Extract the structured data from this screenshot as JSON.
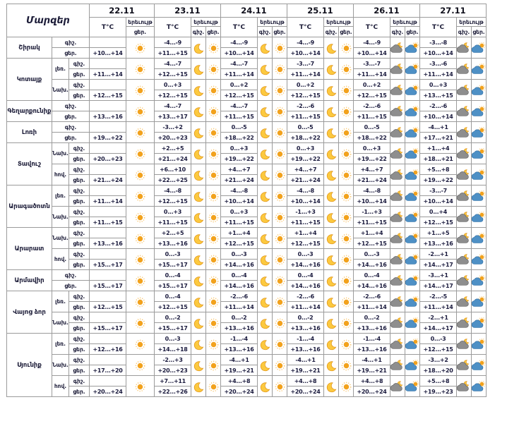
{
  "table": {
    "corner_label": "Մարզեր",
    "temp_header": "T°C",
    "phenomenon_header": "երեւույթ",
    "night_label": "գիշ.",
    "day_label": "ցեր.",
    "dates": [
      {
        "label": "22.11",
        "night_column": false
      },
      {
        "label": "23.11",
        "night_column": true
      },
      {
        "label": "24.11",
        "night_column": true
      },
      {
        "label": "25.11",
        "night_column": true
      },
      {
        "label": "26.11",
        "night_column": true
      },
      {
        "label": "27.11",
        "night_column": true
      }
    ],
    "regions": [
      {
        "name": "Շիրակ",
        "zones": [
          {
            "label": "",
            "cells": [
              [
                "",
                "+10...+14"
              ],
              [
                "-4...-9",
                "+11...+15"
              ],
              [
                "-4...-9",
                "+10...+14"
              ],
              [
                "-4...-9",
                "+10...+14"
              ],
              [
                "-4...-9",
                "+10...+14"
              ],
              [
                "-3...-8",
                "+10...+14"
              ]
            ]
          }
        ]
      },
      {
        "name": "Կոտայք",
        "zones": [
          {
            "label": "լեռ.",
            "cells": [
              [
                "",
                "+11...+14"
              ],
              [
                "-4...-7",
                "+12...+15"
              ],
              [
                "-4...-7",
                "+11...+14"
              ],
              [
                "-3...-7",
                "+11...+14"
              ],
              [
                "-3...-7",
                "+11...+14"
              ],
              [
                "-3...-6",
                "+11...+14"
              ]
            ]
          },
          {
            "label": "Նախ.",
            "cells": [
              [
                "",
                "+12...+15"
              ],
              [
                "0...+3",
                "+12...+15"
              ],
              [
                "0...+2",
                "+12...+15"
              ],
              [
                "0...+2",
                "+12...+15"
              ],
              [
                "0...+2",
                "+12...+15"
              ],
              [
                "0...+3",
                "+13...+15"
              ]
            ]
          }
        ]
      },
      {
        "name": "Գեղարքունիք",
        "zones": [
          {
            "label": "",
            "cells": [
              [
                "",
                "+13...+16"
              ],
              [
                "-4...-7",
                "+13...+17"
              ],
              [
                "-4...-7",
                "+11...+15"
              ],
              [
                "-2...-6",
                "+11...+15"
              ],
              [
                "-2...-6",
                "+11...+15"
              ],
              [
                "-2...-6",
                "+10...+14"
              ]
            ]
          }
        ]
      },
      {
        "name": "Լոռի",
        "zones": [
          {
            "label": "",
            "cells": [
              [
                "",
                "+19...+22"
              ],
              [
                "-3...+2",
                "+20...+23"
              ],
              [
                "0...-5",
                "+18...+22"
              ],
              [
                "0...-5",
                "+18...+22"
              ],
              [
                "0...-5",
                "+18...+22"
              ],
              [
                "-4...+1",
                "+17...+21"
              ]
            ]
          }
        ]
      },
      {
        "name": "Տավուշ",
        "zones": [
          {
            "label": "Նախ.",
            "cells": [
              [
                "",
                "+20...+23"
              ],
              [
                "+2...+5",
                "+21...+24"
              ],
              [
                "0...+3",
                "+19...+22"
              ],
              [
                "0...+3",
                "+19...+22"
              ],
              [
                "0...+3",
                "+19...+22"
              ],
              [
                "+1...+4",
                "+18...+21"
              ]
            ]
          },
          {
            "label": "հով.",
            "cells": [
              [
                "",
                "+21...+24"
              ],
              [
                "+6...+10",
                "+22...+25"
              ],
              [
                "+4...+7",
                "+21...+24"
              ],
              [
                "+4...+7",
                "+21...+24"
              ],
              [
                "+4...+7",
                "+21...+24"
              ],
              [
                "+5...+8",
                "+19...+22"
              ]
            ]
          }
        ]
      },
      {
        "name": "Արագածոտն",
        "zones": [
          {
            "label": "լեռ.",
            "cells": [
              [
                "",
                "+11...+14"
              ],
              [
                "-4...-8",
                "+12...+15"
              ],
              [
                "-4...-8",
                "+10...+14"
              ],
              [
                "-4...-8",
                "+10...+14"
              ],
              [
                "-4...-8",
                "+10...+14"
              ],
              [
                "-3...-7",
                "+10...+14"
              ]
            ]
          },
          {
            "label": "Նախ.",
            "cells": [
              [
                "",
                "+11...+15"
              ],
              [
                "0...+3",
                "+11...+15"
              ],
              [
                "0...+3",
                "+11...+15"
              ],
              [
                "-1...+3",
                "+11...+15"
              ],
              [
                "-1...+3",
                "+11...+15"
              ],
              [
                "0...+4",
                "+12...+15"
              ]
            ]
          }
        ]
      },
      {
        "name": "Արարատ",
        "zones": [
          {
            "label": "Նախ.",
            "cells": [
              [
                "",
                "+13...+16"
              ],
              [
                "+2...+5",
                "+13...+16"
              ],
              [
                "+1...+4",
                "+12...+15"
              ],
              [
                "+1...+4",
                "+12...+15"
              ],
              [
                "+1...+4",
                "+12...+15"
              ],
              [
                "+1...+5",
                "+13...+16"
              ]
            ]
          },
          {
            "label": "հով.",
            "cells": [
              [
                "",
                "+15...+17"
              ],
              [
                "0...-3",
                "+15...+17"
              ],
              [
                "0...-3",
                "+14...+16"
              ],
              [
                "0...-3",
                "+14...+16"
              ],
              [
                "0...-3",
                "+14...+16"
              ],
              [
                "-2...+1",
                "+14...+17"
              ]
            ]
          }
        ]
      },
      {
        "name": "Արմավիր",
        "zones": [
          {
            "label": "",
            "cells": [
              [
                "",
                "+15...+17"
              ],
              [
                "0...-4",
                "+15...+17"
              ],
              [
                "0...-4",
                "+14...+16"
              ],
              [
                "0...-4",
                "+14...+16"
              ],
              [
                "0...-4",
                "+14...+16"
              ],
              [
                "-3...+1",
                "+14...+17"
              ]
            ]
          }
        ]
      },
      {
        "name": "Վայոց ձոր",
        "zones": [
          {
            "label": "լեռ.",
            "cells": [
              [
                "",
                "+12...+15"
              ],
              [
                "0...-4",
                "+12...+15"
              ],
              [
                "-2...-6",
                "+11...+14"
              ],
              [
                "-2...-6",
                "+11...+14"
              ],
              [
                "-2...-6",
                "+11...+14"
              ],
              [
                "-2...-5",
                "+11...+14"
              ]
            ]
          },
          {
            "label": "Նախ.",
            "cells": [
              [
                "",
                "+15...+17"
              ],
              [
                "0...-2",
                "+15...+17"
              ],
              [
                "0...-2",
                "+13...+16"
              ],
              [
                "0...-2",
                "+13...+16"
              ],
              [
                "0...-2",
                "+13...+16"
              ],
              [
                "-2...+1",
                "+14...+17"
              ]
            ]
          }
        ]
      },
      {
        "name": "Սյունիք",
        "zones": [
          {
            "label": "լեռ.",
            "cells": [
              [
                "",
                "+12...+16"
              ],
              [
                "0...-3",
                "+14...+18"
              ],
              [
                "-1...-4",
                "+13...+16"
              ],
              [
                "-1...-4",
                "+13...+16"
              ],
              [
                "-1...-4",
                "+13...+16"
              ],
              [
                "0...-3",
                "+12...+15"
              ]
            ]
          },
          {
            "label": "Նախ.",
            "cells": [
              [
                "",
                "+17...+20"
              ],
              [
                "-2...+3",
                "+20...+23"
              ],
              [
                "-4...+1",
                "+19...+21"
              ],
              [
                "-4...+1",
                "+19...+21"
              ],
              [
                "-4...+1",
                "+19...+21"
              ],
              [
                "-3...+2",
                "+18...+20"
              ]
            ]
          },
          {
            "label": "հով.",
            "cells": [
              [
                "",
                "+20...+24"
              ],
              [
                "+7...+11",
                "+22...+26"
              ],
              [
                "+4...+8",
                "+20...+24"
              ],
              [
                "+4...+8",
                "+20...+24"
              ],
              [
                "+4...+8",
                "+20...+24"
              ],
              [
                "+5...+8",
                "+19...+23"
              ]
            ]
          }
        ]
      }
    ]
  },
  "date_icons": [
    {
      "night": null,
      "day": "sun"
    },
    {
      "night": "moon",
      "day": "sun"
    },
    {
      "night": "moon",
      "day": "sun"
    },
    {
      "night": "moon",
      "day": "sun"
    },
    {
      "night": "cloud-moon",
      "day": "cloud-sun"
    },
    {
      "night": "cloud-moon",
      "day": "cloud-sun"
    }
  ],
  "icon_legend": {
    "sun": "clear day",
    "moon": "clear night",
    "cloud-moon": "cloudy night",
    "cloud-sun": "cloudy day"
  },
  "colors": {
    "sun": "#F2A21D",
    "sun_rays": "#F8C060",
    "moon": "#FCC93F",
    "moon_outline": "#E0951B",
    "cloud_night": "#8E8E8E",
    "cloud_night_outline": "#5F5F5F",
    "cloud_day": "#4E90C5",
    "cloud_day_outline": "#2E6DA4",
    "border": "#9B9B9B",
    "text": "#1B1B3E"
  }
}
